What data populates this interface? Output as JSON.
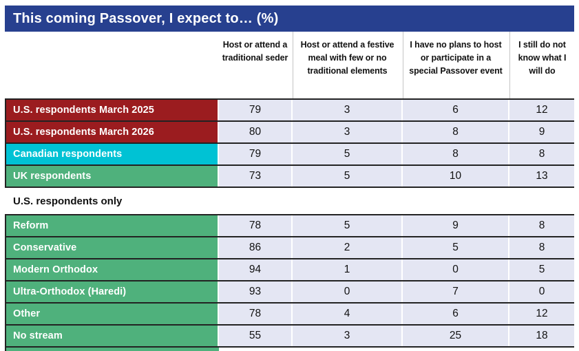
{
  "header": {
    "title": "This coming Passover, I expect to… (%)"
  },
  "table": {
    "columns": [
      "Host or attend a traditional seder",
      "Host or attend a festive meal with few or no traditional elements",
      "I have no plans to host or participate in a special Passover event",
      "I still do not know what I will do"
    ],
    "section_header": "U.S. respondents only",
    "rows": [
      {
        "label": "U.S. respondents March 2025",
        "color": "red",
        "values": [
          79,
          3,
          6,
          12
        ]
      },
      {
        "label": "U.S. respondents March 2026",
        "color": "red",
        "values": [
          80,
          3,
          8,
          9
        ]
      },
      {
        "label": "Canadian respondents",
        "color": "cyan",
        "values": [
          79,
          5,
          8,
          8
        ]
      },
      {
        "label": "UK respondents",
        "color": "green",
        "values": [
          73,
          5,
          10,
          13
        ]
      },
      {
        "label": "Reform",
        "color": "green",
        "values": [
          78,
          5,
          9,
          8
        ]
      },
      {
        "label": "Conservative",
        "color": "green",
        "values": [
          86,
          2,
          5,
          8
        ]
      },
      {
        "label": "Modern Orthodox",
        "color": "green",
        "values": [
          94,
          1,
          0,
          5
        ]
      },
      {
        "label": "Ultra-Orthodox (Haredi)",
        "color": "green",
        "values": [
          93,
          0,
          7,
          0
        ]
      },
      {
        "label": "Other",
        "color": "green",
        "values": [
          78,
          4,
          6,
          12
        ]
      },
      {
        "label": "No stream",
        "color": "green",
        "values": [
          55,
          3,
          25,
          18
        ]
      }
    ]
  },
  "colors": {
    "title_bar": "#27408f",
    "us_rows": "#9b1c1f",
    "canada_row": "#00c2d4",
    "uk_and_stream_rows": "#4fb17c",
    "value_cell_background": "#e4e6f3",
    "row_border": "#222222"
  },
  "chart_data": {
    "type": "table",
    "title": "This coming Passover, I expect to… (%)",
    "columns": [
      "Host or attend a traditional seder",
      "Host or attend a festive meal with few or no traditional elements",
      "I have no plans to host or participate in a special Passover event",
      "I still do not know what I will do"
    ],
    "rows": [
      {
        "label": "U.S. respondents March 2025",
        "values": [
          79,
          3,
          6,
          12
        ]
      },
      {
        "label": "U.S. respondents March 2026",
        "values": [
          80,
          3,
          8,
          9
        ]
      },
      {
        "label": "Canadian respondents",
        "values": [
          79,
          5,
          8,
          8
        ]
      },
      {
        "label": "UK respondents",
        "values": [
          73,
          5,
          10,
          13
        ]
      },
      {
        "label": "Reform",
        "values": [
          78,
          5,
          9,
          8
        ]
      },
      {
        "label": "Conservative",
        "values": [
          86,
          2,
          5,
          8
        ]
      },
      {
        "label": "Modern Orthodox",
        "values": [
          94,
          1,
          0,
          5
        ]
      },
      {
        "label": "Ultra-Orthodox (Haredi)",
        "values": [
          93,
          0,
          7,
          0
        ]
      },
      {
        "label": "Other",
        "values": [
          78,
          4,
          6,
          12
        ]
      },
      {
        "label": "No stream",
        "values": [
          55,
          3,
          25,
          18
        ]
      }
    ],
    "notes": "Rows Reform through No stream appear under the section header 'U.S. respondents only'. Units are percentages."
  }
}
